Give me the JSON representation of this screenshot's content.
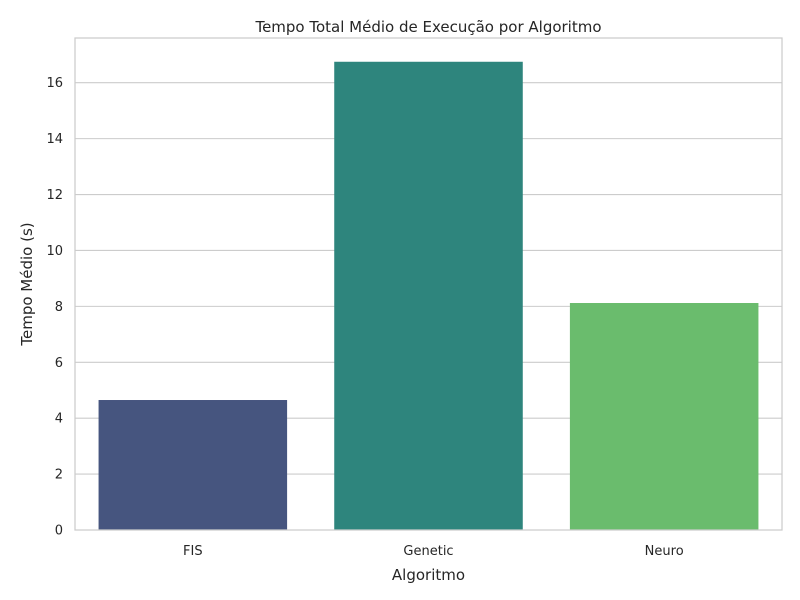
{
  "chart_data": {
    "type": "bar",
    "title": "Tempo Total Médio de Execução por Algoritmo",
    "xlabel": "Algoritmo",
    "ylabel": "Tempo Médio (s)",
    "categories": [
      "FIS",
      "Genetic",
      "Neuro"
    ],
    "values": [
      4.65,
      16.75,
      8.12
    ],
    "colors": [
      "#46557f",
      "#2e857d",
      "#6abc6d"
    ],
    "ylim": [
      0,
      17.6
    ],
    "yticks": [
      0,
      2,
      4,
      6,
      8,
      10,
      12,
      14,
      16
    ],
    "grid": "horizontal",
    "legend": "none"
  }
}
